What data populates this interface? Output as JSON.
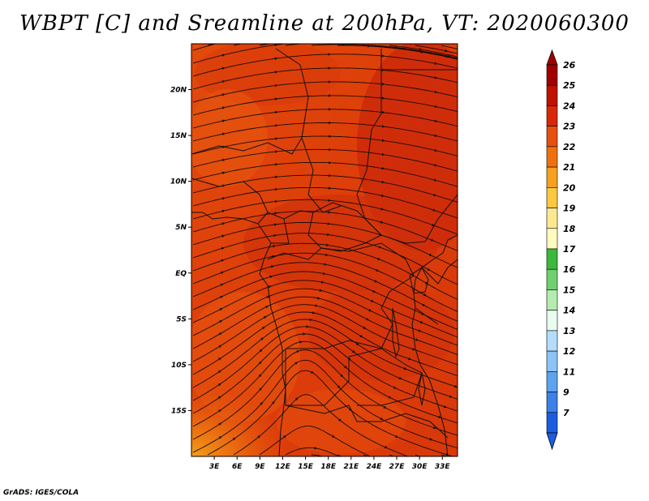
{
  "title": "WBPT [C] and Sreamline at 200hPa, VT: 2020060300",
  "credit": "GrADS: IGES/COLA",
  "map": {
    "lat_labels": [
      {
        "lat": 20,
        "label": "20N"
      },
      {
        "lat": 15,
        "label": "15N"
      },
      {
        "lat": 10,
        "label": "10N"
      },
      {
        "lat": 5,
        "label": "5N"
      },
      {
        "lat": 0,
        "label": "EQ"
      },
      {
        "lat": -5,
        "label": "5S"
      },
      {
        "lat": -10,
        "label": "10S"
      },
      {
        "lat": -15,
        "label": "15S"
      }
    ],
    "lon_labels": [
      {
        "lon": 3,
        "label": "3E"
      },
      {
        "lon": 6,
        "label": "6E"
      },
      {
        "lon": 9,
        "label": "9E"
      },
      {
        "lon": 12,
        "label": "12E"
      },
      {
        "lon": 15,
        "label": "15E"
      },
      {
        "lon": 18,
        "label": "18E"
      },
      {
        "lon": 21,
        "label": "21E"
      },
      {
        "lon": 24,
        "label": "24E"
      },
      {
        "lon": 27,
        "label": "27E"
      },
      {
        "lon": 30,
        "label": "30E"
      },
      {
        "lon": 33,
        "label": "33E"
      }
    ],
    "lon_range": [
      0,
      35
    ],
    "lat_range": [
      -20,
      25
    ],
    "field_colors": {
      "low": "#e8620e",
      "mid": "#e2470c",
      "high": "#cf2a0a",
      "warm_edge": "#f09010"
    }
  },
  "colorbar": {
    "levels": [
      {
        "label": "26",
        "color": "#a00000"
      },
      {
        "label": "25",
        "color": "#c01000"
      },
      {
        "label": "24",
        "color": "#d82808"
      },
      {
        "label": "23",
        "color": "#e85010"
      },
      {
        "label": "22",
        "color": "#f07010"
      },
      {
        "label": "21",
        "color": "#f8a020"
      },
      {
        "label": "20",
        "color": "#fcc840"
      },
      {
        "label": "19",
        "color": "#fde890"
      },
      {
        "label": "18",
        "color": "#fffac0"
      },
      {
        "label": "17",
        "color": "#3cb83c"
      },
      {
        "label": "16",
        "color": "#70d070"
      },
      {
        "label": "15",
        "color": "#b4ecb0"
      },
      {
        "label": "14",
        "color": "#e8fcf0"
      },
      {
        "label": "13",
        "color": "#b4dcfc"
      },
      {
        "label": "12",
        "color": "#8cc4f8"
      },
      {
        "label": "11",
        "color": "#5ca4f0"
      },
      {
        "label": "9",
        "color": "#3c80e8"
      },
      {
        "label": "7",
        "color": "#1c5ce0"
      }
    ],
    "bottom_color": "#1c5ce0",
    "top_color": "#a00000"
  }
}
